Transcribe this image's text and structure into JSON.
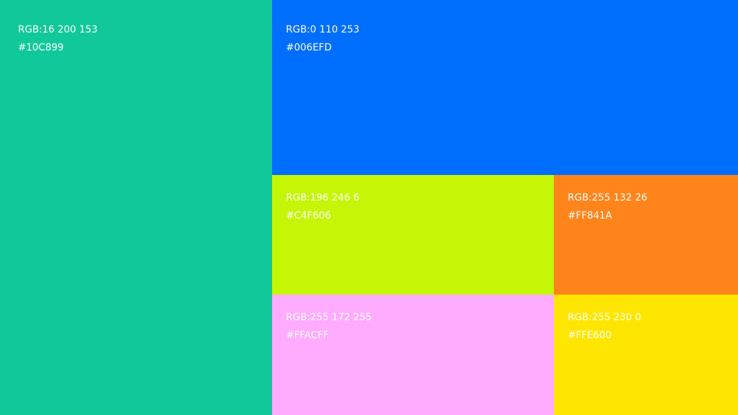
{
  "swatches": [
    {
      "rgb": "RGB:16 200 153",
      "hex": "#10C899",
      "color": "#10C899"
    },
    {
      "rgb": "RGB:0 110 253",
      "hex": "#006EFD",
      "color": "#006EFD"
    },
    {
      "rgb": "RGB:196 246 6",
      "hex": "#C4F606",
      "color": "#C4F606"
    },
    {
      "rgb": "RGB:255 132 26",
      "hex": "#FF841A",
      "color": "#FF841A"
    },
    {
      "rgb": "RGB:255 172 255",
      "hex": "#FFACFF",
      "color": "#FFACFF"
    },
    {
      "rgb": "RGB:255 230 0",
      "hex": "#FFE600",
      "color": "#FFE600"
    }
  ]
}
